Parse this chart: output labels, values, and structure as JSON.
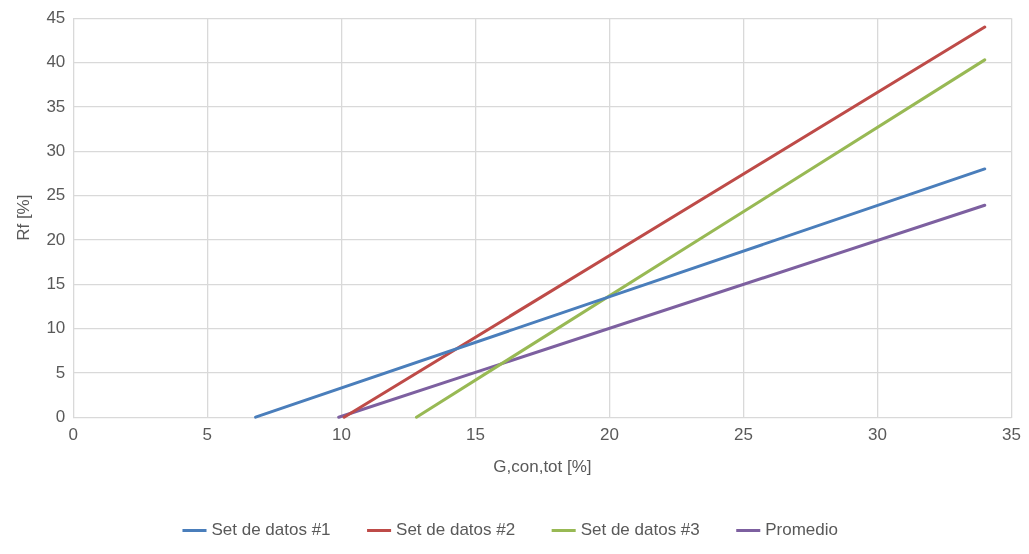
{
  "chart_data": {
    "type": "line",
    "xlabel": "G,con,tot [%]",
    "ylabel": "Rf [%]",
    "xlim": [
      0,
      35
    ],
    "xticks": [
      0,
      5,
      10,
      15,
      20,
      25,
      30,
      35
    ],
    "ylim": [
      0,
      45
    ],
    "yticks": [
      0,
      5,
      10,
      15,
      20,
      25,
      30,
      35,
      40,
      45
    ],
    "grid": true,
    "legend": "bottom",
    "marker": "none",
    "line_style": "solid",
    "series": [
      {
        "name": "Set de datos #1",
        "color": "#4a7ebb",
        "x": [
          6.8,
          34
        ],
        "values": [
          0,
          28
        ]
      },
      {
        "name": "Set de datos #2",
        "color": "#be4b48",
        "x": [
          10.1,
          34
        ],
        "values": [
          0,
          44
        ]
      },
      {
        "name": "Set de datos #3",
        "color": "#98b954",
        "x": [
          12.8,
          34
        ],
        "values": [
          0,
          40.3
        ]
      },
      {
        "name": "Promedio",
        "color": "#7d60a0",
        "x": [
          9.9,
          34
        ],
        "values": [
          0,
          23.9
        ]
      }
    ]
  }
}
